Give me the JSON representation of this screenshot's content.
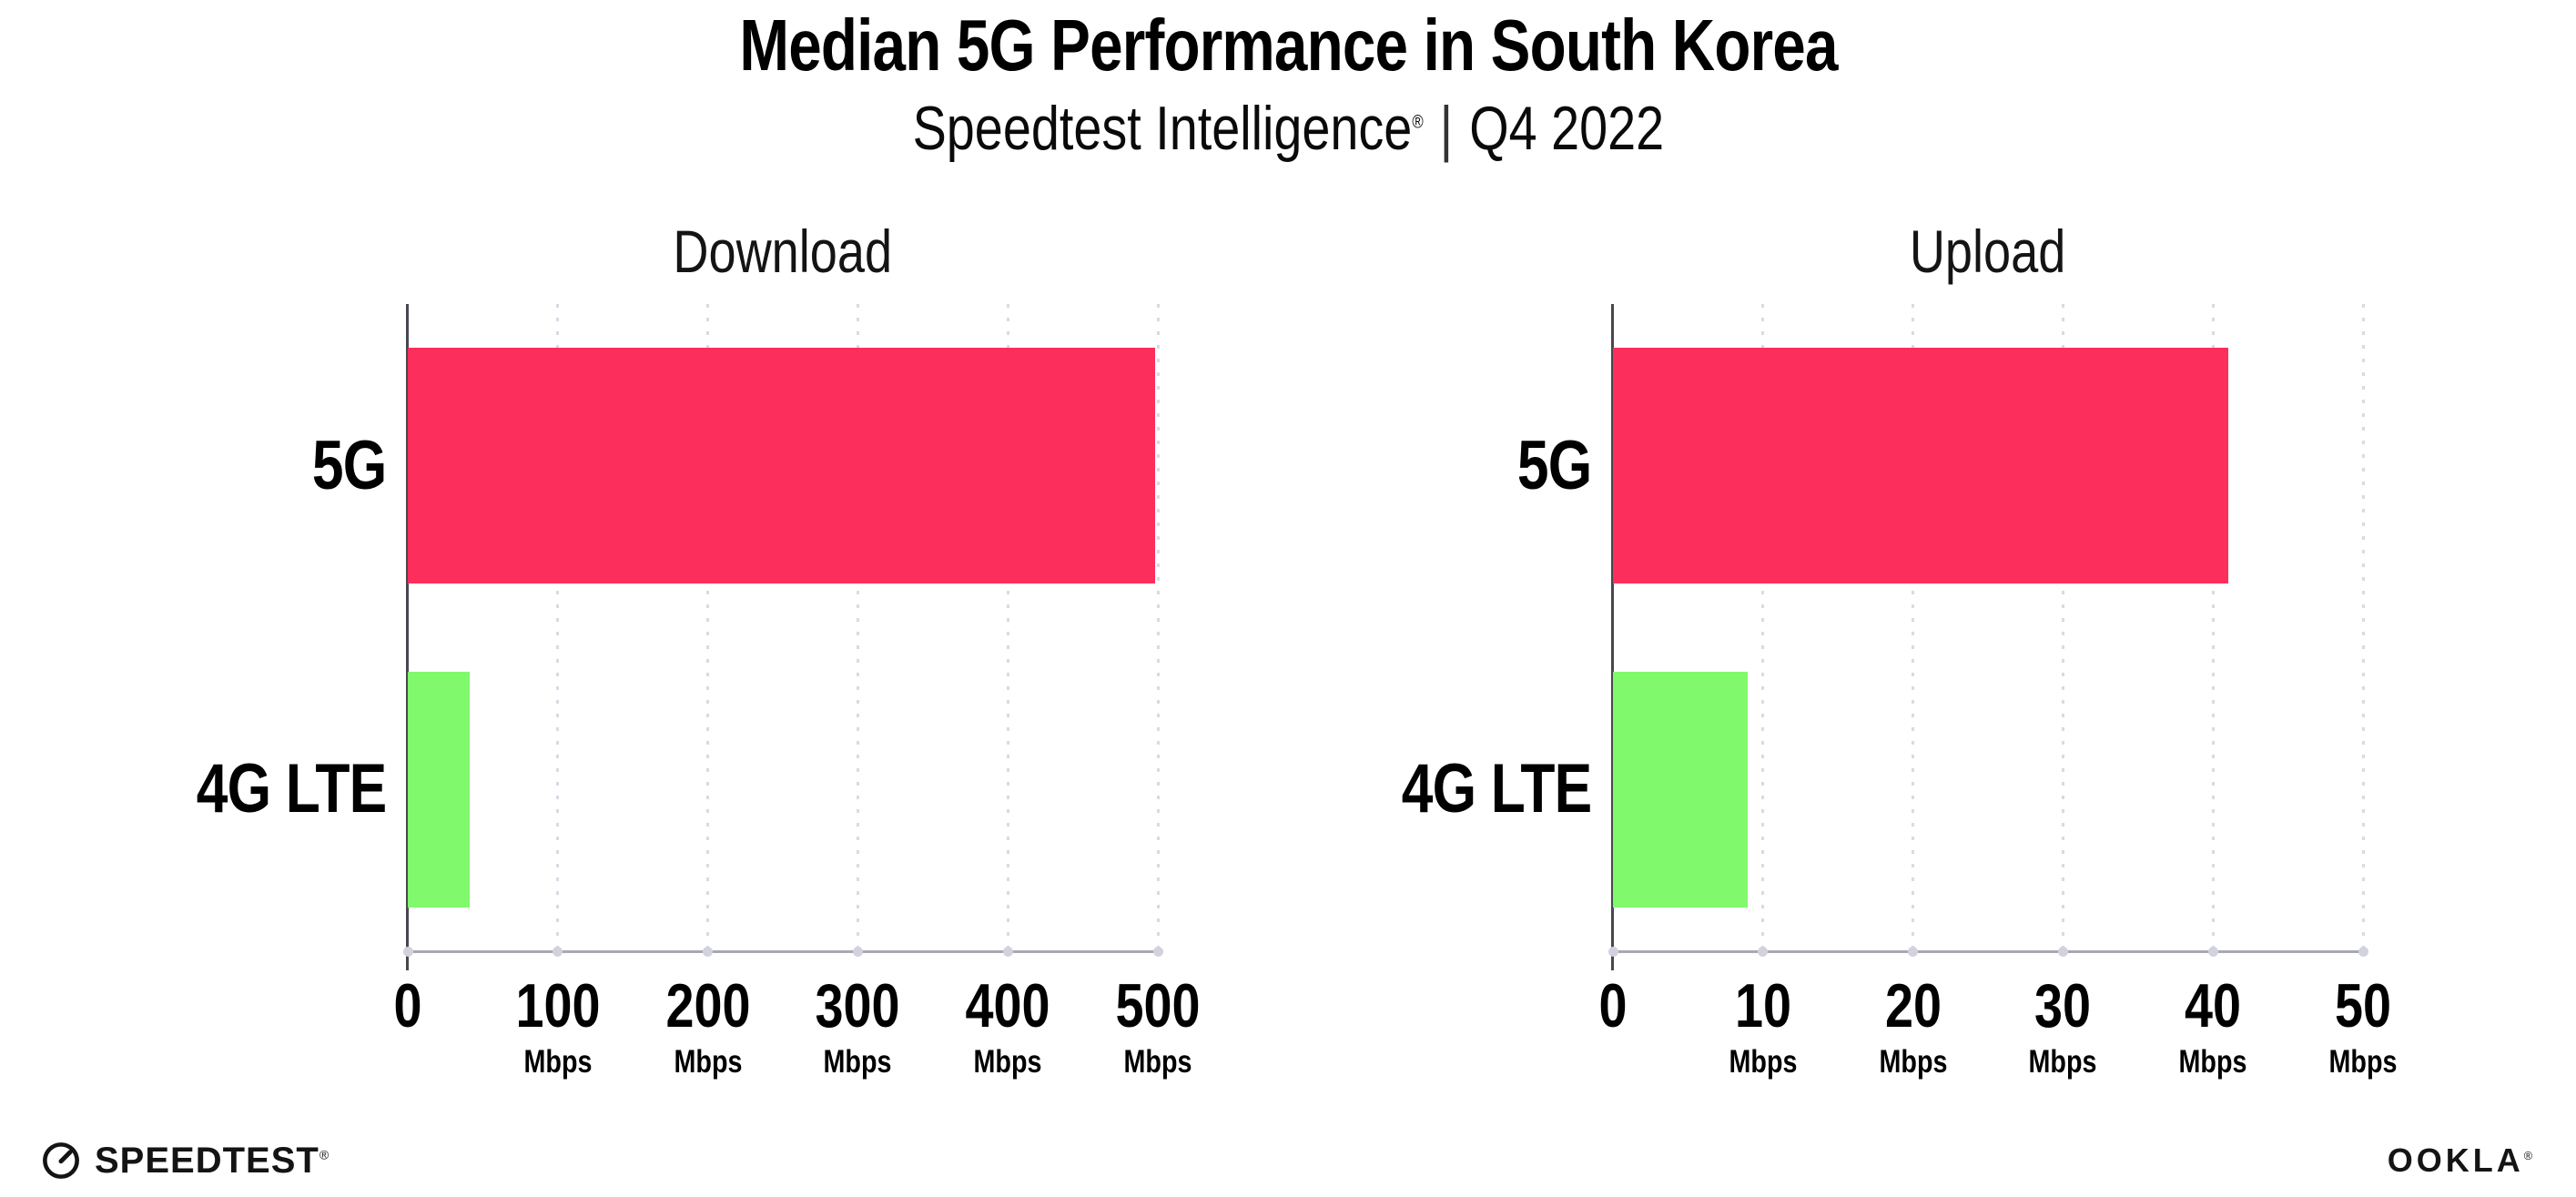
{
  "title": "Median 5G Performance in South Korea",
  "subtitle": {
    "brand": "Speedtest Intelligence",
    "reg_mark": "®",
    "separator": "|",
    "period": "Q4 2022"
  },
  "colors": {
    "bar_5g": "#FC2E5C",
    "bar_4g_lte": "#80FA6C",
    "gridline": "#DADAE4",
    "x_axis": "#A8A8B2",
    "y_axis": "#47474D",
    "text": "#000000"
  },
  "chart_data": [
    {
      "type": "bar",
      "orientation": "horizontal",
      "title": "Download",
      "categories": [
        "5G",
        "4G LTE"
      ],
      "values": [
        498,
        41
      ],
      "unit": "Mbps",
      "xlim": [
        0,
        500
      ],
      "xticks": [
        0,
        100,
        200,
        300,
        400,
        500
      ],
      "xtick_unit": "Mbps",
      "bar_colors": [
        "#FC2E5C",
        "#80FA6C"
      ],
      "grid": "vertical-dotted",
      "legend": false
    },
    {
      "type": "bar",
      "orientation": "horizontal",
      "title": "Upload",
      "categories": [
        "5G",
        "4G LTE"
      ],
      "values": [
        41,
        9
      ],
      "unit": "Mbps",
      "xlim": [
        0,
        50
      ],
      "xticks": [
        0,
        10,
        20,
        30,
        40,
        50
      ],
      "xtick_unit": "Mbps",
      "bar_colors": [
        "#FC2E5C",
        "#80FA6C"
      ],
      "grid": "vertical-dotted",
      "legend": false
    }
  ],
  "footer": {
    "speedtest": {
      "text": "SPEEDTEST",
      "reg_mark": "®"
    },
    "ookla": {
      "text": "OOKLA",
      "reg_mark": "®"
    }
  }
}
